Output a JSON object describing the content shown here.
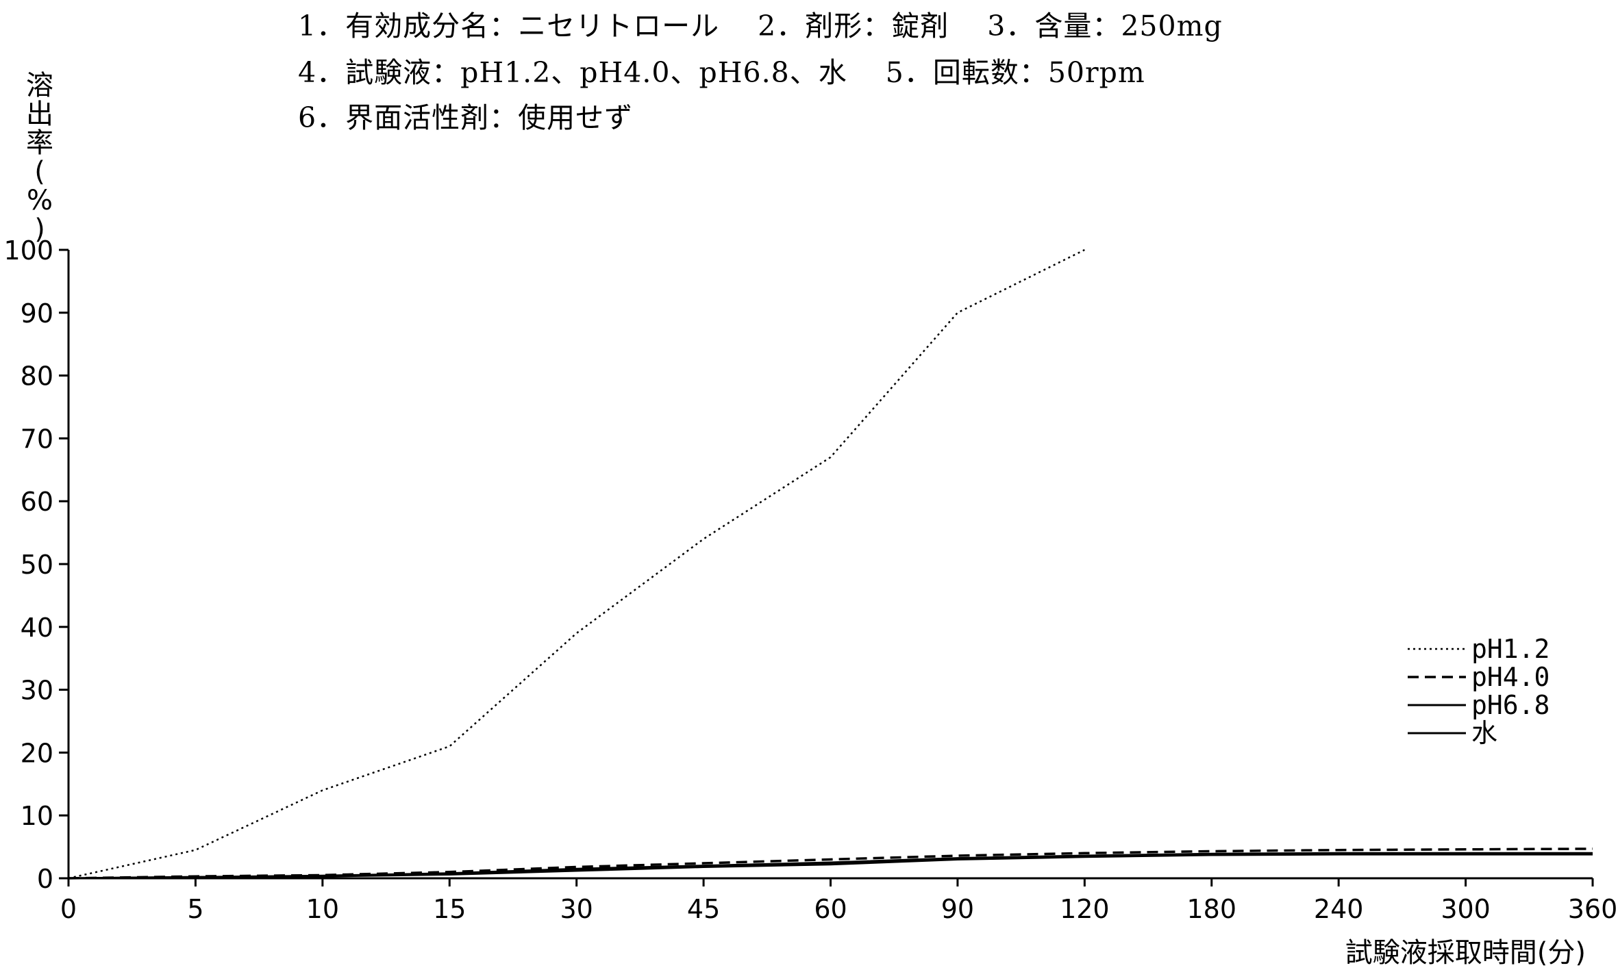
{
  "header": {
    "line1": "1．有効成分名：ニセリトロール　 2．剤形：錠剤　 3．含量：250mg",
    "line2": "4．試験液：pH1.2、pH4.0、pH6.8、水　 5．回転数：50rpm",
    "line3": "6．界面活性剤：使用せず"
  },
  "chart_data": {
    "type": "line",
    "title": "",
    "ylabel": "溶出率(%)",
    "xlabel": "試験液採取時間(分)",
    "x": [
      "0",
      "5",
      "10",
      "15",
      "30",
      "45",
      "60",
      "90",
      "120",
      "180",
      "240",
      "300",
      "360"
    ],
    "ylim": [
      0,
      100
    ],
    "yticks": [
      "0",
      "10",
      "20",
      "30",
      "40",
      "50",
      "60",
      "70",
      "80",
      "90",
      "100"
    ],
    "grid": false,
    "legend_position": "right",
    "series": [
      {
        "name": "pH1.2",
        "style": "dotted",
        "values": [
          0,
          4.5,
          14,
          21,
          39,
          54,
          67,
          90,
          100,
          null,
          null,
          null,
          null
        ]
      },
      {
        "name": "pH4.0",
        "style": "dashed",
        "values": [
          0,
          0.3,
          0.5,
          1.0,
          1.8,
          2.4,
          3.0,
          3.6,
          4.0,
          4.3,
          4.5,
          4.6,
          4.7
        ]
      },
      {
        "name": "pH6.8",
        "style": "solid",
        "values": [
          0,
          0.2,
          0.4,
          0.8,
          1.5,
          2.0,
          2.5,
          3.2,
          3.6,
          3.9,
          4.0,
          4.0,
          4.0
        ]
      },
      {
        "name": "水",
        "style": "solid",
        "values": [
          0,
          0.2,
          0.3,
          0.6,
          1.2,
          1.8,
          2.2,
          3.0,
          3.4,
          3.7,
          3.8,
          3.8,
          3.8
        ]
      }
    ]
  }
}
